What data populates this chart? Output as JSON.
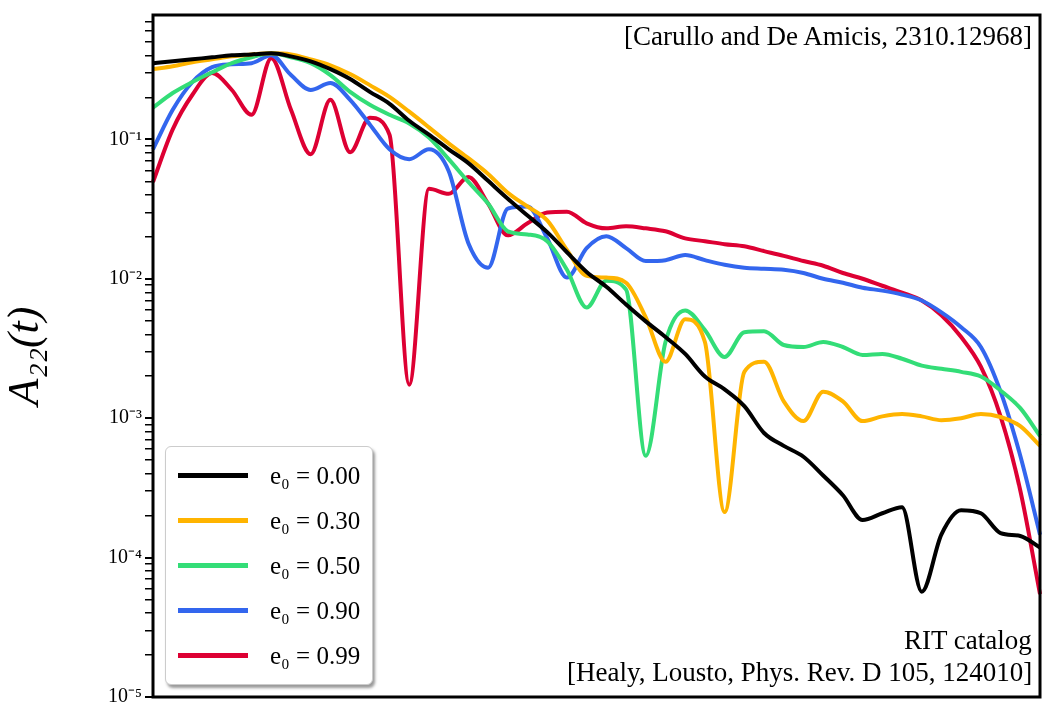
{
  "chart_data": {
    "type": "line",
    "ylabel": "A₂₂(t)",
    "log": "y",
    "grid": false,
    "legend": "bottom left",
    "tick_labels": "y",
    "marker": "none",
    "line_style": "solid",
    "ylim": [
      1e-05,
      0.78
    ],
    "yticks": [
      {
        "value": 1e-05,
        "label": "10⁻⁵"
      },
      {
        "value": 0.0001,
        "label": "10⁻⁴"
      },
      {
        "value": 0.001,
        "label": "10⁻³"
      },
      {
        "value": 0.01,
        "label": "10⁻²"
      },
      {
        "value": 0.1,
        "label": "10⁻¹"
      },
      {
        "value": 2e-05,
        "label": null
      },
      {
        "value": 3e-05,
        "label": null
      },
      {
        "value": 4e-05,
        "label": null
      },
      {
        "value": 5e-05,
        "label": null
      },
      {
        "value": 6e-05,
        "label": null
      },
      {
        "value": 7e-05,
        "label": null
      },
      {
        "value": 8e-05,
        "label": null
      },
      {
        "value": 9e-05,
        "label": null
      },
      {
        "value": 0.0002,
        "label": null
      },
      {
        "value": 0.0003,
        "label": null
      },
      {
        "value": 0.0004,
        "label": null
      },
      {
        "value": 0.0005,
        "label": null
      },
      {
        "value": 0.0006,
        "label": null
      },
      {
        "value": 0.0007,
        "label": null
      },
      {
        "value": 0.0008,
        "label": null
      },
      {
        "value": 0.0009,
        "label": null
      },
      {
        "value": 0.002,
        "label": null
      },
      {
        "value": 0.003,
        "label": null
      },
      {
        "value": 0.004,
        "label": null
      },
      {
        "value": 0.005,
        "label": null
      },
      {
        "value": 0.006,
        "label": null
      },
      {
        "value": 0.007,
        "label": null
      },
      {
        "value": 0.008,
        "label": null
      },
      {
        "value": 0.009,
        "label": null
      },
      {
        "value": 0.02,
        "label": null
      },
      {
        "value": 0.03,
        "label": null
      },
      {
        "value": 0.04,
        "label": null
      },
      {
        "value": 0.05,
        "label": null
      },
      {
        "value": 0.06,
        "label": null
      },
      {
        "value": 0.07,
        "label": null
      },
      {
        "value": 0.08,
        "label": null
      },
      {
        "value": 0.09,
        "label": null
      },
      {
        "value": 0.2,
        "label": null
      },
      {
        "value": 0.3,
        "label": null
      },
      {
        "value": 0.4,
        "label": null
      },
      {
        "value": 0.5,
        "label": null
      },
      {
        "value": 0.6,
        "label": null
      },
      {
        "value": 0.7,
        "label": null
      }
    ],
    "categories": [
      null,
      null,
      null,
      null,
      null,
      null,
      null,
      null,
      null,
      null,
      null,
      null,
      null,
      null,
      null,
      null,
      null,
      null,
      null,
      null,
      null,
      null,
      null,
      null,
      null,
      null,
      null,
      null,
      null,
      null,
      null,
      null,
      null,
      null,
      null,
      null,
      null,
      null,
      null,
      null,
      null,
      null,
      null,
      null,
      null,
      null
    ],
    "series": [
      {
        "name": "e₀ = 0.00",
        "color": "#000000",
        "values": [
          0.352,
          0.363,
          0.375,
          0.388,
          0.401,
          0.407,
          0.414,
          0.394,
          0.363,
          0.319,
          0.271,
          0.219,
          0.18,
          0.136,
          0.108,
          0.0849,
          0.0676,
          0.0504,
          0.0375,
          0.0284,
          0.0216,
          0.0155,
          0.0112,
          0.00877,
          0.00654,
          0.00495,
          0.00382,
          0.00289,
          0.00199,
          0.00161,
          0.00122,
          0.000783,
          0.000633,
          0.000529,
          0.000388,
          0.00028,
          0.000186,
          0.000208,
          0.00023,
          5.7e-05,
          0.000147,
          0.000219,
          0.000208,
          0.00015,
          0.000143,
          0.000118
        ]
      },
      {
        "name": "e₀ = 0.30",
        "color": "#ffb400",
        "values": [
          0.319,
          0.335,
          0.357,
          0.375,
          0.394,
          0.407,
          0.414,
          0.407,
          0.375,
          0.34,
          0.294,
          0.245,
          0.202,
          0.158,
          0.122,
          0.0937,
          0.0733,
          0.0565,
          0.0414,
          0.033,
          0.0262,
          0.0161,
          0.0105,
          0.0102,
          0.00937,
          0.00529,
          0.00254,
          0.00512,
          0.00352,
          0.000212,
          0.00215,
          0.00254,
          0.00132,
          0.000953,
          0.00155,
          0.00132,
          0.000953,
          0.00103,
          0.00107,
          0.00103,
          0.000968,
          0.001,
          0.00107,
          0.00102,
          0.000877,
          0.000633
        ]
      },
      {
        "name": "e₀ = 0.50",
        "color": "#33dd77",
        "values": [
          0.169,
          0.215,
          0.258,
          0.303,
          0.352,
          0.388,
          0.414,
          0.388,
          0.352,
          0.289,
          0.219,
          0.177,
          0.15,
          0.13,
          0.103,
          0.0721,
          0.0495,
          0.0346,
          0.0219,
          0.0208,
          0.0186,
          0.0116,
          0.00622,
          0.00968,
          0.00836,
          0.000537,
          0.00352,
          0.00593,
          0.00428,
          0.00275,
          0.00414,
          0.00421,
          0.00335,
          0.00324,
          0.00352,
          0.00324,
          0.00284,
          0.00289,
          0.00267,
          0.00238,
          0.00226,
          0.00215,
          0.00199,
          0.00158,
          0.00118,
          0.000745
        ]
      },
      {
        "name": "e₀ = 0.90",
        "color": "#3366ee",
        "values": [
          0.0849,
          0.163,
          0.258,
          0.33,
          0.346,
          0.352,
          0.401,
          0.289,
          0.226,
          0.254,
          0.192,
          0.128,
          0.0849,
          0.0721,
          0.0849,
          0.0593,
          0.018,
          0.012,
          0.0319,
          0.033,
          0.0195,
          0.0102,
          0.0166,
          0.0202,
          0.0166,
          0.0134,
          0.0136,
          0.0148,
          0.0136,
          0.0126,
          0.012,
          0.0118,
          0.0116,
          0.011,
          0.01,
          0.00937,
          0.00863,
          0.00822,
          0.0077,
          0.00698,
          0.00574,
          0.00449,
          0.00324,
          0.00155,
          0.000537,
          0.000146
        ]
      },
      {
        "name": "e₀ = 0.99",
        "color": "#dd0033",
        "values": [
          0.0495,
          0.118,
          0.209,
          0.299,
          0.226,
          0.15,
          0.382,
          0.163,
          0.0783,
          0.192,
          0.0809,
          0.143,
          0.108,
          0.00174,
          0.0442,
          0.0407,
          0.0537,
          0.0346,
          0.0205,
          0.025,
          0.0299,
          0.0303,
          0.025,
          0.023,
          0.0238,
          0.023,
          0.0219,
          0.0195,
          0.0186,
          0.0177,
          0.0171,
          0.0158,
          0.0146,
          0.0134,
          0.0124,
          0.011,
          0.01,
          0.00891,
          0.00796,
          0.00698,
          0.00547,
          0.00382,
          0.00234,
          0.00103,
          0.000303,
          5.47e-05
        ]
      }
    ],
    "annotations": [
      "[Carullo and De Amicis, 2310.12968]",
      "RIT catalog",
      "[Healy, Lousto, Phys. Rev. D 105, 124010]"
    ]
  }
}
